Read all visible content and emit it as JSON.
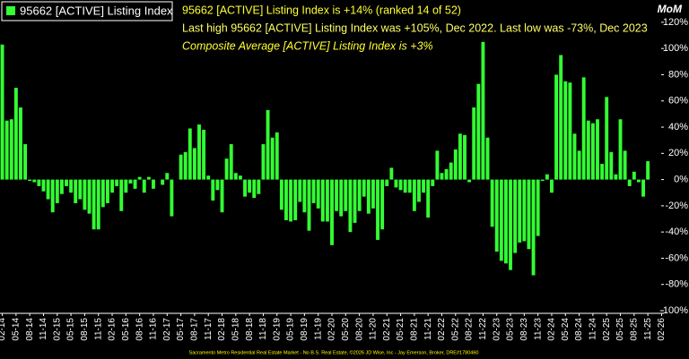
{
  "chart_data": {
    "type": "bar",
    "legend_title": "95662 [ACTIVE] Listing Index",
    "y_axis_label": "MoM",
    "annotations": [
      "95662 [ACTIVE] Listing Index is +14% (ranked 14 of 52)",
      "Last high 95662 [ACTIVE] Listing Index was +105%, Dec 2022. Last low was -73%, Dec 2023",
      "Composite Average [ACTIVE] Listing Index is +3%"
    ],
    "footer": "Sacramento Metro Residential Real Estate Market - No B.S. Real Estate, ©2026 JD Wise, Inc - Jay Emerson, Broker, DRE#1780460",
    "categories": [
      "02-14",
      null,
      null,
      "05-14",
      null,
      null,
      "08-14",
      null,
      null,
      "11-14",
      null,
      null,
      "02-15",
      null,
      null,
      "05-15",
      null,
      null,
      "08-15",
      null,
      null,
      "11-15",
      null,
      null,
      "02-16",
      null,
      null,
      "05-16",
      null,
      null,
      "08-16",
      null,
      null,
      "11-16",
      null,
      null,
      "02-17",
      null,
      null,
      "05-17",
      null,
      null,
      "08-17",
      null,
      null,
      "11-17",
      null,
      null,
      "02-18",
      null,
      null,
      "05-18",
      null,
      null,
      "08-18",
      null,
      null,
      "11-18",
      null,
      null,
      "02-19",
      null,
      null,
      "05-19",
      null,
      null,
      "08-19",
      null,
      null,
      "11-19",
      null,
      null,
      "02-20",
      null,
      null,
      "05-20",
      null,
      null,
      "08-20",
      null,
      null,
      "11-20",
      null,
      null,
      "02-21",
      null,
      null,
      "05-21",
      null,
      null,
      "08-21",
      null,
      null,
      "11-21",
      null,
      null,
      "02-22",
      null,
      null,
      "05-22",
      null,
      null,
      "08-22",
      null,
      null,
      "11-22",
      null,
      null,
      "02-23",
      null,
      null,
      "05-23",
      null,
      null,
      "08-23",
      null,
      null,
      "11-23",
      null,
      null,
      "02-24",
      null,
      null,
      "05-24",
      null,
      null,
      "08-24",
      null,
      null,
      "11-24",
      null,
      null,
      "02-25",
      null,
      null,
      "05-25",
      null,
      null,
      "08-25",
      null,
      null,
      "11-25",
      null,
      null,
      "02-26"
    ],
    "series": [
      {
        "name": "95662 [ACTIVE] Listing Index",
        "color": "#33ff33",
        "values": [
          103,
          45,
          46,
          70,
          55,
          27,
          -1,
          -2,
          -5,
          -9,
          -15,
          -25,
          -18,
          -11,
          -5,
          -10,
          -18,
          -15,
          -23,
          -26,
          -38,
          -38,
          -21,
          -18,
          -10,
          -5,
          -24,
          -10,
          -3,
          -7,
          2,
          -10,
          2,
          -7,
          0,
          -4,
          5,
          -28,
          0,
          19,
          21,
          39,
          24,
          42,
          38,
          3,
          -16,
          -8,
          -25,
          16,
          27,
          5,
          3,
          -13,
          -10,
          -14,
          -11,
          27,
          53,
          32,
          36,
          -23,
          -31,
          -32,
          -31,
          -17,
          -25,
          -39,
          -18,
          -22,
          -32,
          -32,
          -50,
          -24,
          -28,
          -24,
          -40,
          -33,
          -24,
          -13,
          -26,
          -22,
          -46,
          -38,
          -5,
          9,
          -6,
          -8,
          -10,
          -10,
          -24,
          -17,
          -10,
          -29,
          -5,
          22,
          5,
          8,
          13,
          23,
          35,
          34,
          -2,
          55,
          73,
          105,
          32,
          -36,
          -55,
          -62,
          -64,
          -69,
          -56,
          -48,
          -47,
          -53,
          -73,
          -43,
          -1,
          4,
          -10,
          80,
          95,
          75,
          74,
          35,
          22,
          78,
          45,
          43,
          46,
          12,
          63,
          21,
          4,
          46,
          22,
          -5,
          6,
          -2,
          -13,
          14,
          null,
          null,
          null
        ]
      }
    ],
    "ylim": [
      -100,
      137
    ],
    "yticks": [
      {
        "value": -100,
        "label": "-100%"
      },
      {
        "value": -80,
        "label": "-80%"
      },
      {
        "value": -60,
        "label": "-60%"
      },
      {
        "value": -40,
        "label": "-40%"
      },
      {
        "value": -20,
        "label": "-20%"
      },
      {
        "value": 0,
        "label": "0%"
      },
      {
        "value": 20,
        "label": "20%"
      },
      {
        "value": 40,
        "label": "40%"
      },
      {
        "value": 60,
        "label": "60%"
      },
      {
        "value": 80,
        "label": "80%"
      },
      {
        "value": 100,
        "label": "100%"
      },
      {
        "value": 120,
        "label": "120%"
      }
    ],
    "grid": false
  }
}
